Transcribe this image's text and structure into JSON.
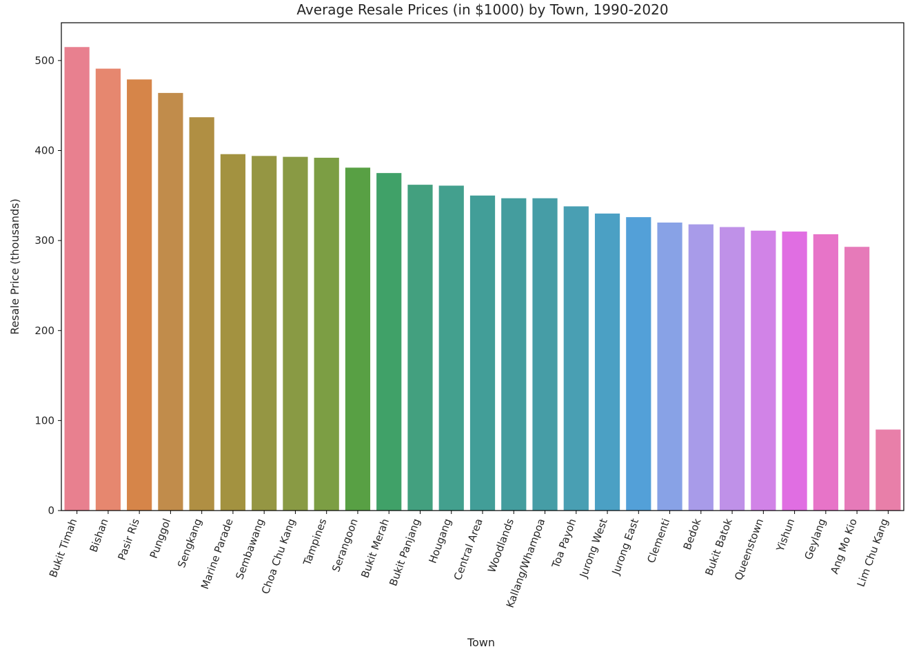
{
  "chart_data": {
    "type": "bar",
    "title": "Average Resale Prices (in $1000) by Town, 1990-2020",
    "xlabel": "Town",
    "ylabel": "Resale Price (thousands)",
    "ylim": [
      0,
      542
    ],
    "yticks": [
      0,
      100,
      200,
      300,
      400,
      500
    ],
    "grid": false,
    "legend": "none",
    "categories": [
      "Bukit Timah",
      "Bishan",
      "Pasir Ris",
      "Punggol",
      "Sengkang",
      "Marine Parade",
      "Sembawang",
      "Choa Chu Kang",
      "Tampines",
      "Serangoon",
      "Bukit Merah",
      "Bukit Panjang",
      "Hougang",
      "Central Area",
      "Woodlands",
      "Kallang/Whampoa",
      "Toa Payoh",
      "Jurong West",
      "Jurong East",
      "Clementi",
      "Bedok",
      "Bukit Batok",
      "Queenstown",
      "Yishun",
      "Geylang",
      "Ang Mo Kio",
      "Lim Chu Kang"
    ],
    "values": [
      515,
      491,
      479,
      464,
      437,
      396,
      394,
      393,
      392,
      381,
      375,
      362,
      361,
      350,
      347,
      347,
      338,
      330,
      326,
      320,
      318,
      315,
      311,
      310,
      307,
      293,
      90
    ],
    "colors": [
      "#e8808f",
      "#e6876f",
      "#d68549",
      "#c18c4b",
      "#b08f43",
      "#a39240",
      "#959643",
      "#899a44",
      "#7c9e44",
      "#58a044",
      "#40a168",
      "#43a07f",
      "#43a08e",
      "#429e98",
      "#449d9e",
      "#469da6",
      "#499fb3",
      "#4ba0c4",
      "#53a0d8",
      "#88a2e6",
      "#a89be9",
      "#bf91e8",
      "#d183e7",
      "#e06ee2",
      "#e774c8",
      "#e67ab9",
      "#e87fa9"
    ]
  }
}
